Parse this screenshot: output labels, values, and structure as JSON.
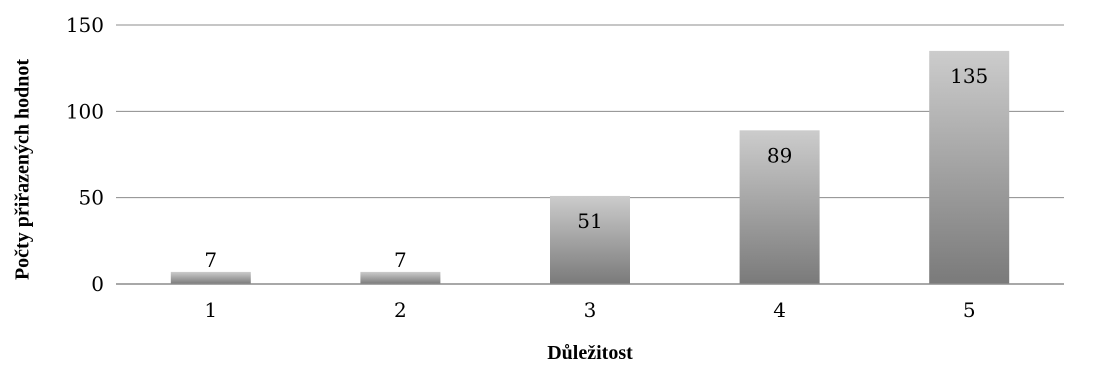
{
  "chart_data": {
    "type": "bar",
    "title": "",
    "xlabel": "Důležitost",
    "ylabel": "Počty přiřazených hodnot",
    "categories": [
      "1",
      "2",
      "3",
      "4",
      "5"
    ],
    "values": [
      7,
      7,
      51,
      89,
      135
    ],
    "data_labels": [
      "7",
      "7",
      "51",
      "89",
      "135"
    ],
    "yticks": [
      "0",
      "50",
      "100",
      "150"
    ],
    "ytick_values": [
      0,
      50,
      100,
      150
    ],
    "ylim": [
      0,
      150
    ],
    "grid": true,
    "legend": "none",
    "colors": {
      "bar_top": "#cccccc",
      "bar_bottom": "#7a7a7a",
      "grid": "#8c8c8c",
      "axis": "#8c8c8c"
    }
  }
}
